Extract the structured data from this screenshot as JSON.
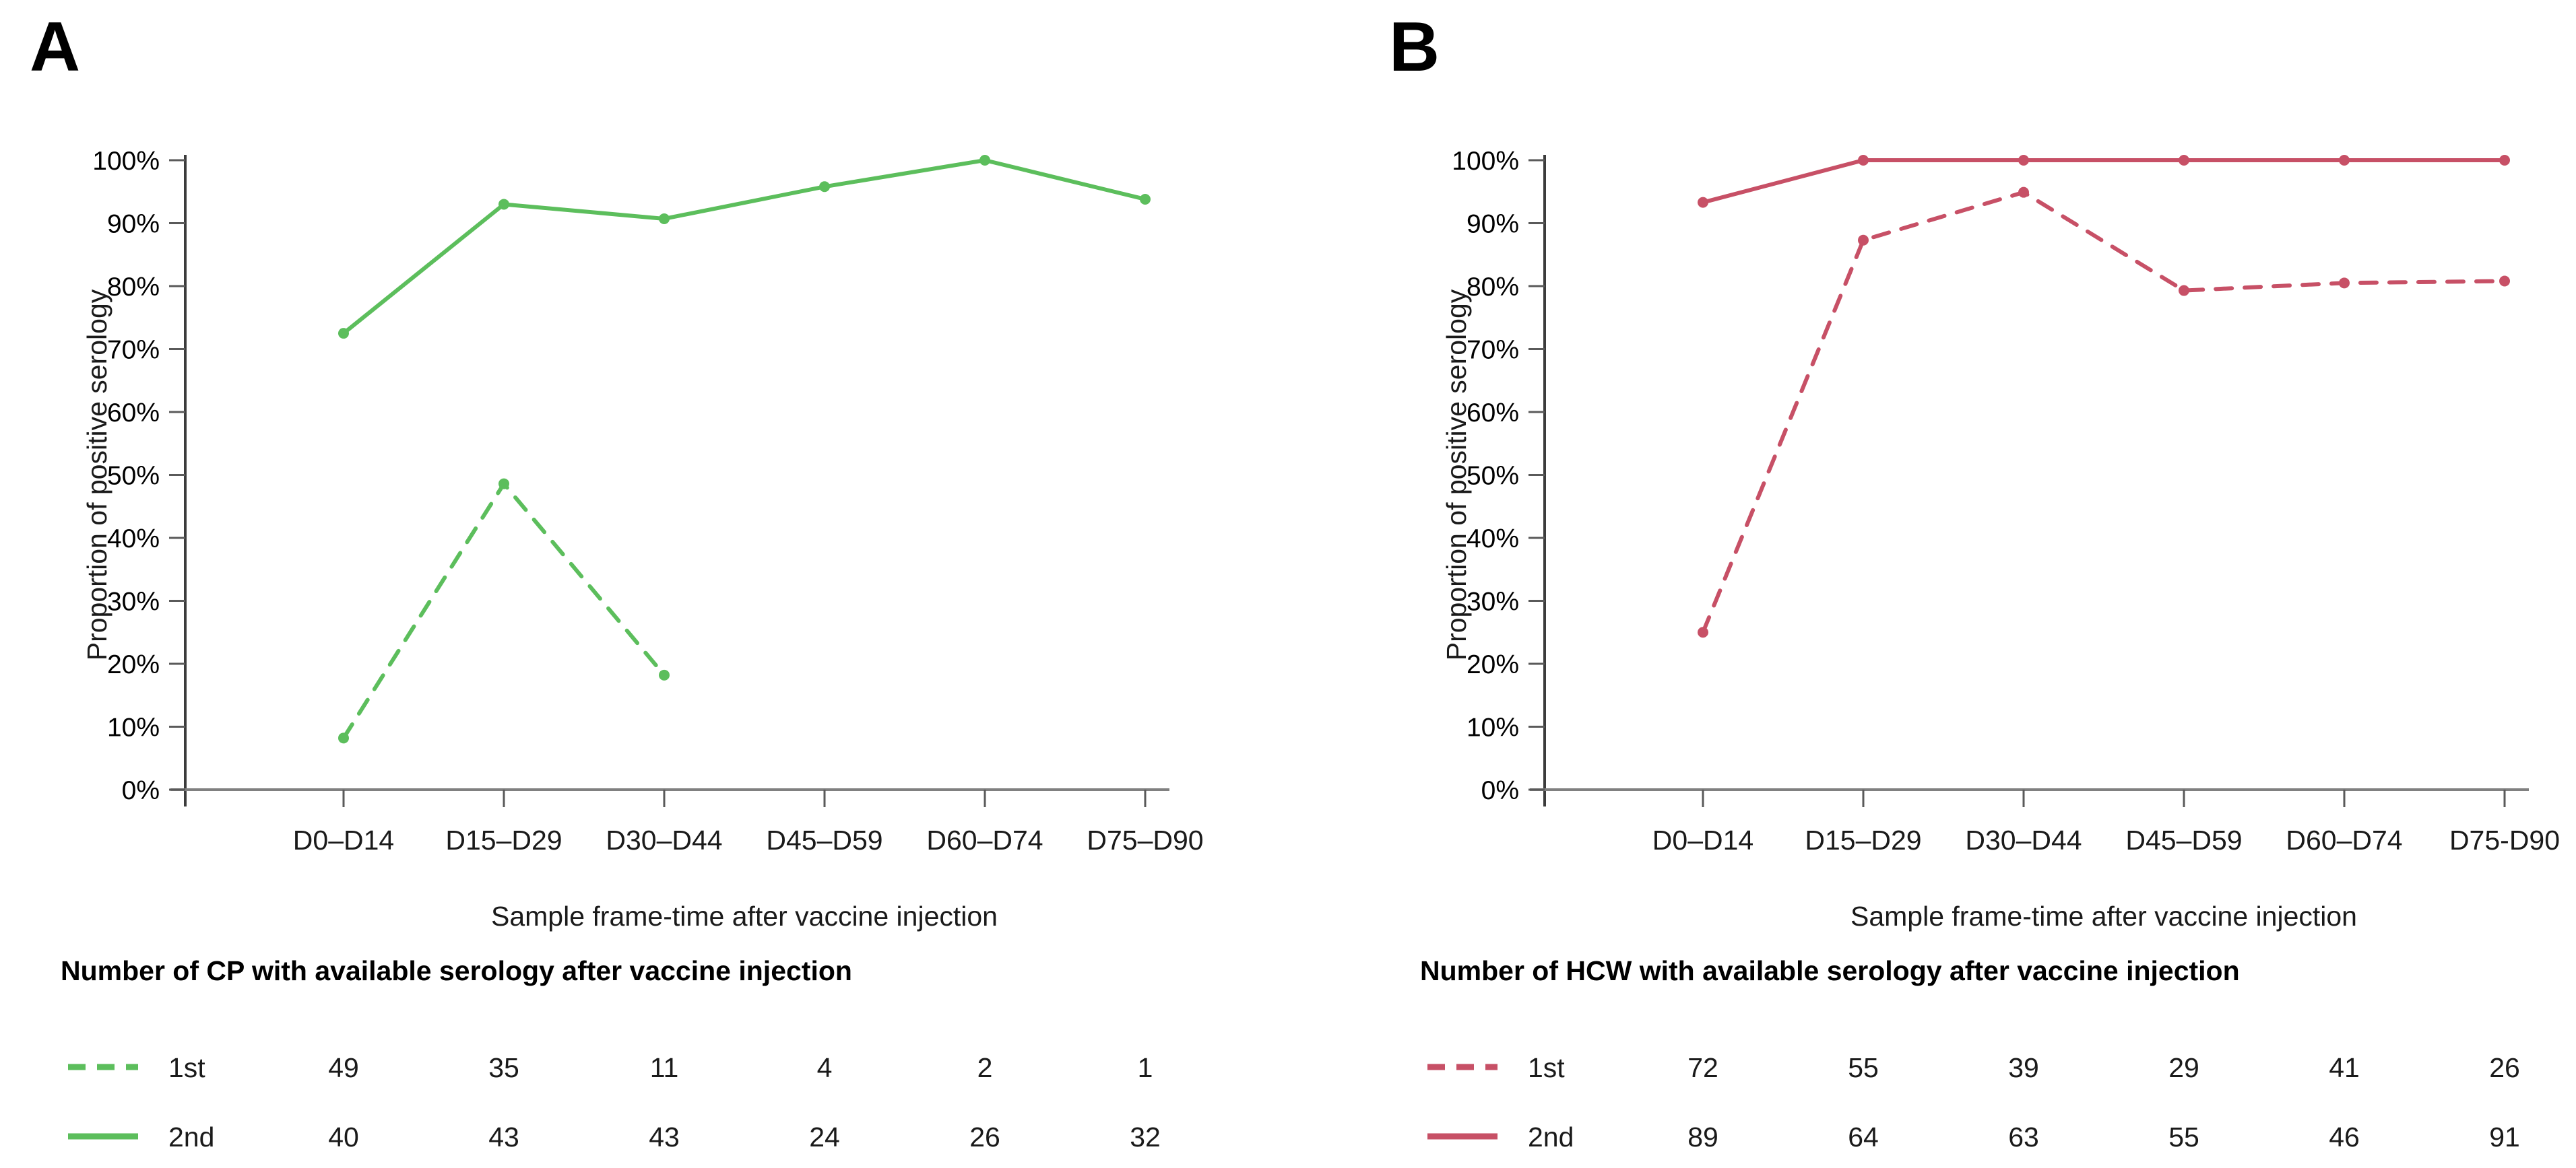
{
  "chart_data": [
    {
      "type": "line",
      "panel_label": "A",
      "title": "",
      "xlabel": "Sample frame-time after vaccine injection",
      "ylabel": "Proportion of positive serology",
      "table_title": "Number of CP with available serology after vaccine injection",
      "categories": [
        "D0–D14",
        "D15–D29",
        "D30–D44",
        "D45–D59",
        "D60–D74",
        "D75–D90"
      ],
      "y_tick_labels": [
        "100%",
        "90%",
        "80%",
        "70%",
        "60%",
        "50%",
        "40%",
        "30%",
        "20%",
        "10%",
        "0%"
      ],
      "ylim": [
        0,
        100
      ],
      "ytick_step": 10,
      "grid": false,
      "legend_position": "bottom-table",
      "color": "#5cbe5c",
      "series": [
        {
          "name": "1st",
          "style": "dashed",
          "values": [
            8.2,
            48.6,
            18.2,
            null,
            null,
            null
          ],
          "counts": [
            "49",
            "35",
            "11",
            "4",
            "2",
            "1"
          ]
        },
        {
          "name": "2nd",
          "style": "solid",
          "values": [
            72.5,
            93.0,
            90.7,
            95.8,
            100.0,
            93.8
          ],
          "counts": [
            "40",
            "43",
            "43",
            "24",
            "26",
            "32"
          ]
        }
      ]
    },
    {
      "type": "line",
      "panel_label": "B",
      "title": "",
      "xlabel": "Sample frame-time after vaccine injection",
      "ylabel": "Proportion of positive serology",
      "table_title": "Number of HCW with available serology after vaccine injection",
      "categories": [
        "D0–D14",
        "D15–D29",
        "D30–D44",
        "D45–D59",
        "D60–D74",
        "D75-D90"
      ],
      "y_tick_labels": [
        "100%",
        "90%",
        "80%",
        "70%",
        "60%",
        "50%",
        "40%",
        "30%",
        "20%",
        "10%",
        "0%"
      ],
      "ylim": [
        0,
        100
      ],
      "ytick_step": 10,
      "grid": false,
      "legend_position": "bottom-table",
      "color": "#c75066",
      "series": [
        {
          "name": "1st",
          "style": "dashed",
          "values": [
            25.0,
            87.3,
            94.9,
            79.3,
            80.5,
            80.8
          ],
          "counts": [
            "72",
            "55",
            "39",
            "29",
            "41",
            "26"
          ]
        },
        {
          "name": "2nd",
          "style": "solid",
          "values": [
            93.3,
            100.0,
            100.0,
            100.0,
            100.0,
            100.0
          ],
          "counts": [
            "89",
            "64",
            "63",
            "55",
            "46",
            "91"
          ]
        }
      ]
    }
  ]
}
